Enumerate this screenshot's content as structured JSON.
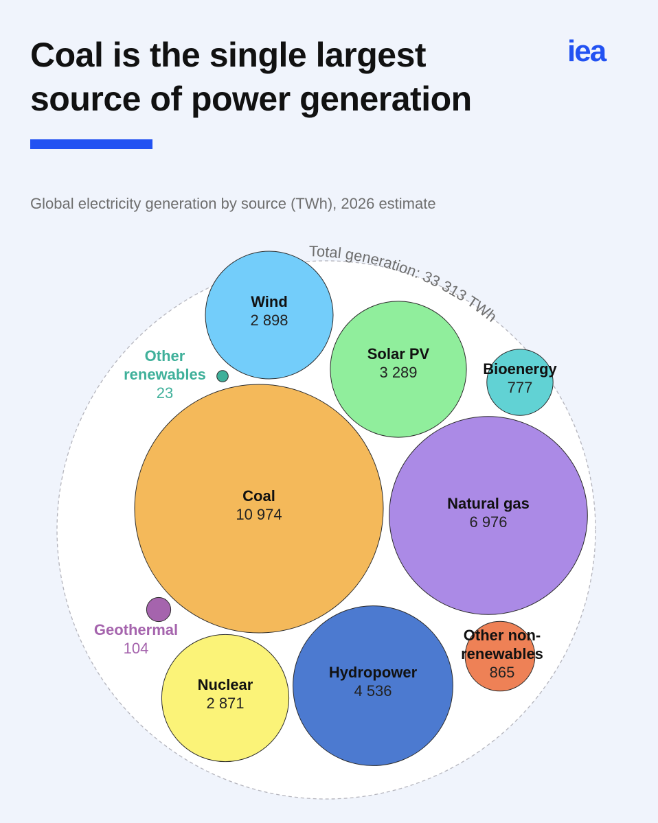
{
  "header": {
    "title_line1": "Coal is the single largest",
    "title_line2": "source of power generation",
    "logo": "iea",
    "subtitle": "Global electricity generation by source (TWh), 2026 estimate"
  },
  "colors": {
    "accent": "#2252f2"
  },
  "chart_data": {
    "type": "bubble",
    "unit": "TWh",
    "total_label": "Total generation: 33 313 TWh",
    "total": 33313,
    "series": [
      {
        "name": "Coal",
        "value": 10974,
        "value_label": "10 974",
        "color": "#f4b95a"
      },
      {
        "name": "Natural gas",
        "value": 6976,
        "value_label": "6 976",
        "color": "#ab8ae6"
      },
      {
        "name": "Hydropower",
        "value": 4536,
        "value_label": "4 536",
        "color": "#4c7ad0"
      },
      {
        "name": "Solar PV",
        "value": 3289,
        "value_label": "3 289",
        "color": "#90ee9c"
      },
      {
        "name": "Wind",
        "value": 2898,
        "value_label": "2 898",
        "color": "#73cdfa"
      },
      {
        "name": "Nuclear",
        "value": 2871,
        "value_label": "2 871",
        "color": "#fbf378"
      },
      {
        "name": "Other non-renewables",
        "value": 865,
        "value_label": "865",
        "color": "#ee8156"
      },
      {
        "name": "Bioenergy",
        "value": 777,
        "value_label": "777",
        "color": "#61d2d4"
      },
      {
        "name": "Geothermal",
        "value": 104,
        "value_label": "104",
        "color": "#a564ad"
      },
      {
        "name": "Other renewables",
        "value": 23,
        "value_label": "23",
        "color": "#3fb09a"
      }
    ]
  }
}
